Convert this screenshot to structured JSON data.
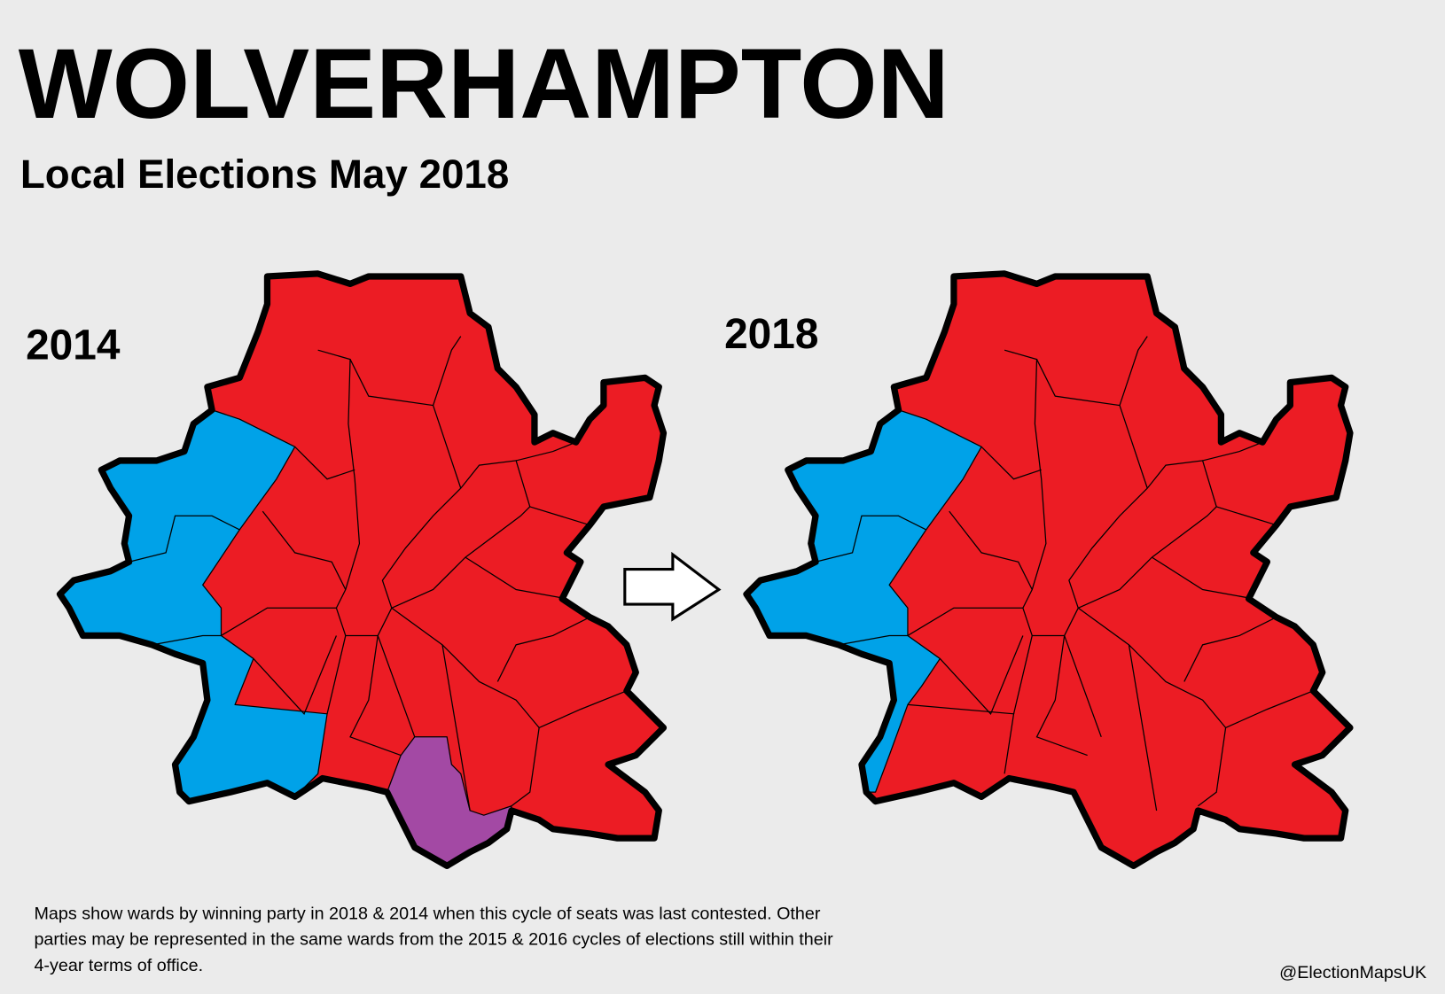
{
  "header": {
    "title": "WOLVERHAMPTON",
    "subtitle": "Local Elections May 2018"
  },
  "maps": [
    {
      "label": "2014"
    },
    {
      "label": "2018"
    }
  ],
  "footnote": {
    "lines": [
      "Maps show wards by winning party in 2018 & 2014 when this cycle of seats was last contested. Other",
      "parties may be represented in the same wards from the 2015 & 2016 cycles of elections still within their",
      "4-year terms of office."
    ]
  },
  "credit": "@ElectionMapsUK"
}
